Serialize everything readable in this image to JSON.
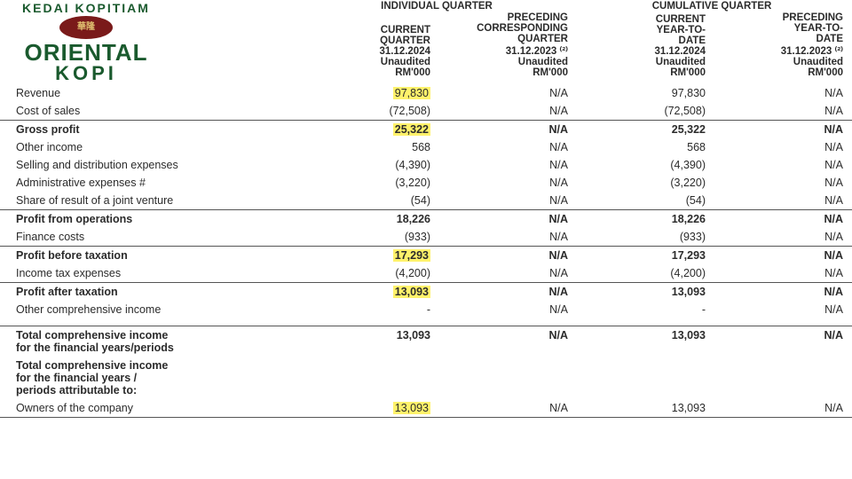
{
  "logo": {
    "top": "KEDAI KOPITIAM",
    "emblem": "華隆",
    "mid": "ORIENTAL",
    "bot": "KOPI"
  },
  "headers": {
    "group1": "INDIVIDUAL QUARTER",
    "group2": "CUMULATIVE QUARTER",
    "col1": "CURRENT\nQUARTER\n31.12.2024\nUnaudited\nRM'000",
    "col2": "PRECEDING\nCORRESPONDING\nQUARTER\n31.12.2023 ⁽²⁾\nUnaudited\nRM'000",
    "col3": "CURRENT\nYEAR-TO-\nDATE\n31.12.2024\nUnaudited\nRM'000",
    "col4": "PRECEDING\nYEAR-TO-\nDATE\n31.12.2023 ⁽²⁾\nUnaudited\nRM'000"
  },
  "rows": [
    {
      "l": "Revenue",
      "c1": "97,830",
      "c2": "N/A",
      "c3": "97,830",
      "c4": "N/A",
      "hl1": true
    },
    {
      "l": "Cost of sales",
      "c1": "(72,508)",
      "c2": "N/A",
      "c3": "(72,508)",
      "c4": "N/A"
    },
    {
      "l": "Gross profit",
      "c1": "25,322",
      "c2": "N/A",
      "c3": "25,322",
      "c4": "N/A",
      "bold": true,
      "bt": true,
      "hl1": true
    },
    {
      "l": "Other income",
      "c1": "568",
      "c2": "N/A",
      "c3": "568",
      "c4": "N/A"
    },
    {
      "l": "Selling and distribution expenses",
      "c1": "(4,390)",
      "c2": "N/A",
      "c3": "(4,390)",
      "c4": "N/A"
    },
    {
      "l": "Administrative expenses #",
      "c1": "(3,220)",
      "c2": "N/A",
      "c3": "(3,220)",
      "c4": "N/A"
    },
    {
      "l": "Share of result of a joint venture",
      "c1": "(54)",
      "c2": "N/A",
      "c3": "(54)",
      "c4": "N/A"
    },
    {
      "l": "Profit from operations",
      "c1": "18,226",
      "c2": "N/A",
      "c3": "18,226",
      "c4": "N/A",
      "bold": true,
      "bt": true
    },
    {
      "l": "Finance costs",
      "c1": "(933)",
      "c2": "N/A",
      "c3": "(933)",
      "c4": "N/A"
    },
    {
      "l": "Profit before taxation",
      "c1": "17,293",
      "c2": "N/A",
      "c3": "17,293",
      "c4": "N/A",
      "bold": true,
      "bt": true,
      "hl1": true
    },
    {
      "l": "Income tax expenses",
      "c1": "(4,200)",
      "c2": "N/A",
      "c3": "(4,200)",
      "c4": "N/A"
    },
    {
      "l": "Profit after taxation",
      "c1": "13,093",
      "c2": "N/A",
      "c3": "13,093",
      "c4": "N/A",
      "bold": true,
      "bt": true,
      "hl1": true
    },
    {
      "l": "Other comprehensive income",
      "c1": "-",
      "c2": "N/A",
      "c3": "-",
      "c4": "N/A"
    },
    {
      "l": "Total comprehensive income\n   for the financial years/periods",
      "c1": "13,093",
      "c2": "N/A",
      "c3": "13,093",
      "c4": "N/A",
      "bold": true,
      "bt": true,
      "spacer": true
    },
    {
      "l": "Total comprehensive income\n   for the financial years /\n   periods attributable to:",
      "bold": true,
      "nobody": true
    },
    {
      "l": "Owners of the company",
      "c1": "13,093",
      "c2": "N/A",
      "c3": "13,093",
      "c4": "N/A",
      "hl1": true,
      "bb": true
    }
  ]
}
